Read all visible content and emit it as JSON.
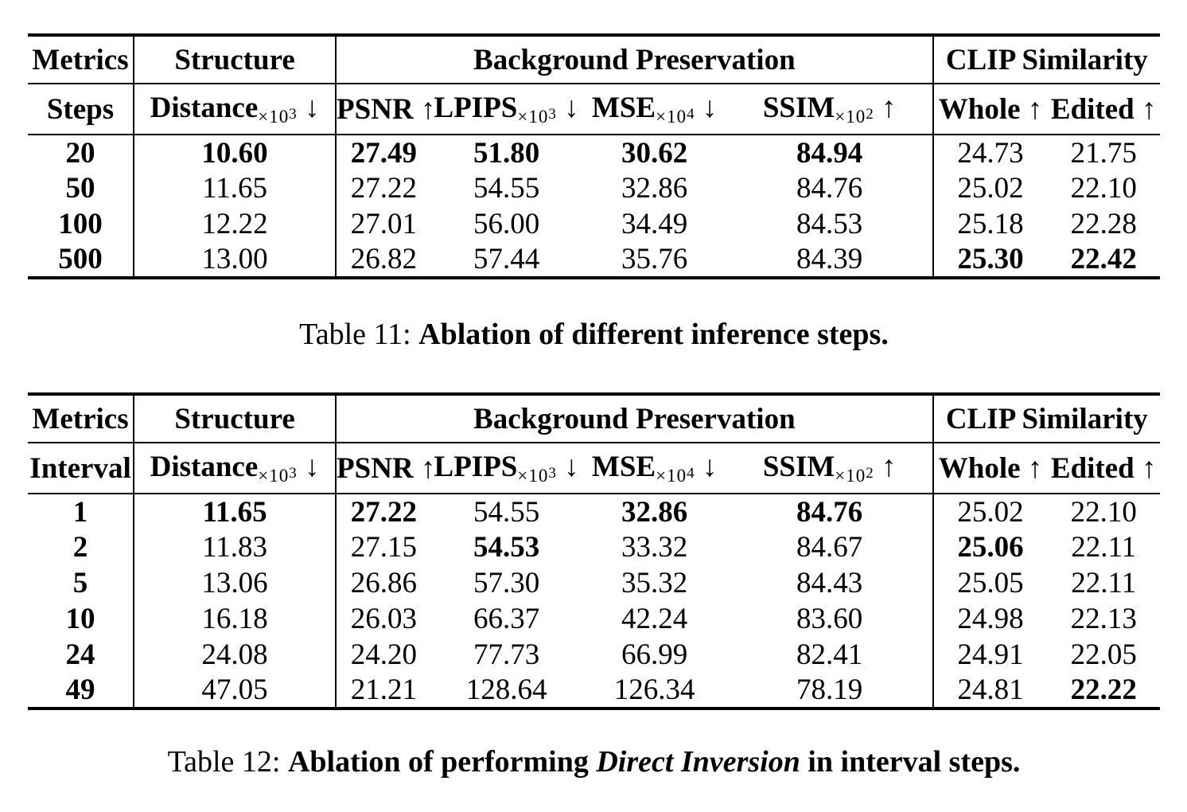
{
  "colors": {
    "text": "#000000",
    "background": "#ffffff",
    "rule": "#000000"
  },
  "t1": {
    "groups": [
      "Metrics",
      "Structure",
      "Background Preservation",
      "CLIP Similarity"
    ],
    "cols": [
      {
        "name": "Steps",
        "sub": "",
        "exp": "",
        "arrow": ""
      },
      {
        "name": "Distance",
        "sub": "×10",
        "exp": "3",
        "arrow": " ↓"
      },
      {
        "name": "PSNR",
        "sub": "",
        "exp": "",
        "arrow": " ↑"
      },
      {
        "name": "LPIPS",
        "sub": "×10",
        "exp": "3",
        "arrow": " ↓"
      },
      {
        "name": "MSE",
        "sub": "×10",
        "exp": "4",
        "arrow": " ↓"
      },
      {
        "name": "SSIM",
        "sub": "×10",
        "exp": "2",
        "arrow": " ↑"
      },
      {
        "name": "Whole",
        "sub": "",
        "exp": "",
        "arrow": " ↑"
      },
      {
        "name": "Edited",
        "sub": "",
        "exp": "",
        "arrow": " ↑"
      }
    ],
    "rows": [
      {
        "label": "20",
        "cells": [
          [
            "10.60",
            1
          ],
          [
            "27.49",
            1
          ],
          [
            "51.80",
            1
          ],
          [
            "30.62",
            1
          ],
          [
            "84.94",
            1
          ],
          [
            "24.73",
            0
          ],
          [
            "21.75",
            0
          ]
        ]
      },
      {
        "label": "50",
        "cells": [
          [
            "11.65",
            0
          ],
          [
            "27.22",
            0
          ],
          [
            "54.55",
            0
          ],
          [
            "32.86",
            0
          ],
          [
            "84.76",
            0
          ],
          [
            "25.02",
            0
          ],
          [
            "22.10",
            0
          ]
        ]
      },
      {
        "label": "100",
        "cells": [
          [
            "12.22",
            0
          ],
          [
            "27.01",
            0
          ],
          [
            "56.00",
            0
          ],
          [
            "34.49",
            0
          ],
          [
            "84.53",
            0
          ],
          [
            "25.18",
            0
          ],
          [
            "22.28",
            0
          ]
        ]
      },
      {
        "label": "500",
        "cells": [
          [
            "13.00",
            0
          ],
          [
            "26.82",
            0
          ],
          [
            "57.44",
            0
          ],
          [
            "35.76",
            0
          ],
          [
            "84.39",
            0
          ],
          [
            "25.30",
            1
          ],
          [
            "22.42",
            1
          ]
        ]
      }
    ],
    "caption": {
      "prefix": "Table 11: ",
      "bold1": "Ablation of different inference steps.",
      "italic": "",
      "bold2": ""
    }
  },
  "t2": {
    "groups": [
      "Metrics",
      "Structure",
      "Background Preservation",
      "CLIP Similarity"
    ],
    "cols": [
      {
        "name": "Interval",
        "sub": "",
        "exp": "",
        "arrow": ""
      },
      {
        "name": "Distance",
        "sub": "×10",
        "exp": "3",
        "arrow": " ↓"
      },
      {
        "name": "PSNR",
        "sub": "",
        "exp": "",
        "arrow": " ↑"
      },
      {
        "name": "LPIPS",
        "sub": "×10",
        "exp": "3",
        "arrow": " ↓"
      },
      {
        "name": "MSE",
        "sub": "×10",
        "exp": "4",
        "arrow": " ↓"
      },
      {
        "name": "SSIM",
        "sub": "×10",
        "exp": "2",
        "arrow": " ↑"
      },
      {
        "name": "Whole",
        "sub": "",
        "exp": "",
        "arrow": " ↑"
      },
      {
        "name": "Edited",
        "sub": "",
        "exp": "",
        "arrow": " ↑"
      }
    ],
    "rows": [
      {
        "label": "1",
        "cells": [
          [
            "11.65",
            1
          ],
          [
            "27.22",
            1
          ],
          [
            "54.55",
            0
          ],
          [
            "32.86",
            1
          ],
          [
            "84.76",
            1
          ],
          [
            "25.02",
            0
          ],
          [
            "22.10",
            0
          ]
        ]
      },
      {
        "label": "2",
        "cells": [
          [
            "11.83",
            0
          ],
          [
            "27.15",
            0
          ],
          [
            "54.53",
            1
          ],
          [
            "33.32",
            0
          ],
          [
            "84.67",
            0
          ],
          [
            "25.06",
            1
          ],
          [
            "22.11",
            0
          ]
        ]
      },
      {
        "label": "5",
        "cells": [
          [
            "13.06",
            0
          ],
          [
            "26.86",
            0
          ],
          [
            "57.30",
            0
          ],
          [
            "35.32",
            0
          ],
          [
            "84.43",
            0
          ],
          [
            "25.05",
            0
          ],
          [
            "22.11",
            0
          ]
        ]
      },
      {
        "label": "10",
        "cells": [
          [
            "16.18",
            0
          ],
          [
            "26.03",
            0
          ],
          [
            "66.37",
            0
          ],
          [
            "42.24",
            0
          ],
          [
            "83.60",
            0
          ],
          [
            "24.98",
            0
          ],
          [
            "22.13",
            0
          ]
        ]
      },
      {
        "label": "24",
        "cells": [
          [
            "24.08",
            0
          ],
          [
            "24.20",
            0
          ],
          [
            "77.73",
            0
          ],
          [
            "66.99",
            0
          ],
          [
            "82.41",
            0
          ],
          [
            "24.91",
            0
          ],
          [
            "22.05",
            0
          ]
        ]
      },
      {
        "label": "49",
        "cells": [
          [
            "47.05",
            0
          ],
          [
            "21.21",
            0
          ],
          [
            "128.64",
            0
          ],
          [
            "126.34",
            0
          ],
          [
            "78.19",
            0
          ],
          [
            "24.81",
            0
          ],
          [
            "22.22",
            1
          ]
        ]
      }
    ],
    "caption": {
      "prefix": "Table 12: ",
      "bold1": "Ablation of performing ",
      "italic": "Direct Inversion",
      "bold2": " in interval steps."
    }
  }
}
